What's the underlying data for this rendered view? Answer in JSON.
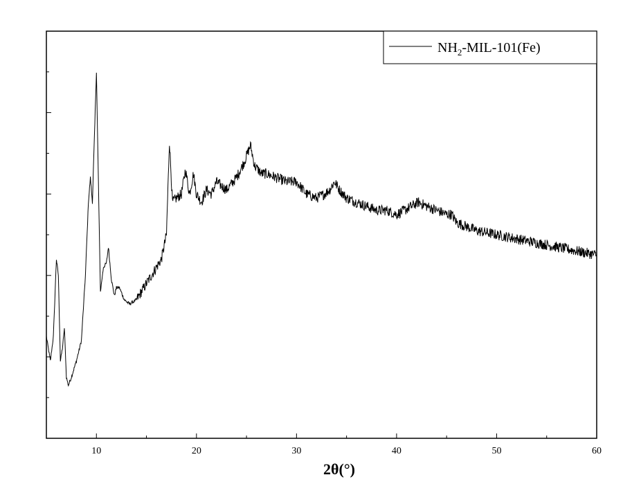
{
  "chart_data": {
    "type": "line",
    "xlabel": "2θ(°)",
    "ylabel": "",
    "xlim": [
      5,
      60
    ],
    "ylim": [
      0,
      100
    ],
    "x_ticks": [
      10,
      20,
      30,
      40,
      50,
      60
    ],
    "y_ticks_shown_without_labels": true,
    "grid": false,
    "legend_position": "top-right",
    "series": [
      {
        "name": "NH2-MIL-101(Fe)",
        "name_parts": {
          "base": "NH",
          "sub": "2",
          "rest": "-MIL-101(Fe)"
        },
        "color": "#000000",
        "x": [
          5,
          5.4,
          5.7,
          6.0,
          6.2,
          6.4,
          6.6,
          6.8,
          7.0,
          7.2,
          7.5,
          8.0,
          8.5,
          8.9,
          9.2,
          9.4,
          9.6,
          9.8,
          10.0,
          10.2,
          10.4,
          10.7,
          11.0,
          11.2,
          11.5,
          11.8,
          12.0,
          12.3,
          12.8,
          13.3,
          14.0,
          15.0,
          16.0,
          16.5,
          17.0,
          17.3,
          17.6,
          18.0,
          18.5,
          18.9,
          19.3,
          19.7,
          20.0,
          20.5,
          21.0,
          21.5,
          22.0,
          22.5,
          23.0,
          24.0,
          24.8,
          25.4,
          25.8,
          26.5,
          27.0,
          28.0,
          29.0,
          30.0,
          31.0,
          32.0,
          32.8,
          33.3,
          33.8,
          34.3,
          35.0,
          36.0,
          37.0,
          38.0,
          39.0,
          40.0,
          40.8,
          41.5,
          42.2,
          43.0,
          44.0,
          45.0,
          45.5,
          46.0,
          47.0,
          48.0,
          50.0,
          52.0,
          54.0,
          56.0,
          58.0,
          60.0
        ],
        "y": [
          25,
          19,
          25,
          44,
          40,
          19,
          22,
          27,
          15,
          13,
          15,
          19,
          24,
          40,
          58,
          64,
          58,
          74,
          90,
          63,
          36,
          42,
          43,
          47,
          39,
          35,
          37,
          37,
          34,
          33,
          34,
          38,
          42,
          44,
          50,
          73,
          58,
          59,
          60,
          66,
          60,
          65,
          60,
          58,
          61,
          60,
          63,
          62,
          61,
          64,
          68,
          72,
          67,
          65,
          65,
          64,
          63,
          63,
          60,
          59,
          60,
          61,
          63,
          61,
          59,
          58,
          57,
          56,
          56,
          55,
          56,
          57,
          58,
          57,
          56,
          55,
          55,
          53,
          52,
          51,
          50,
          49,
          48,
          47,
          46,
          45
        ]
      }
    ]
  }
}
